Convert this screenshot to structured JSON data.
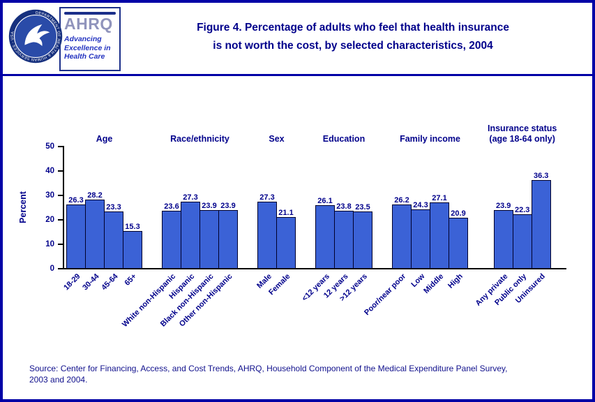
{
  "header": {
    "seal_text": "DEPARTMENT OF HEALTH & HUMAN SERVICES - USA",
    "ahrq_word": "AHRQ",
    "ahrq_tagline_line1": "Advancing",
    "ahrq_tagline_line2": "Excellence in",
    "ahrq_tagline_line3": "Health Care",
    "title_line1": "Figure 4. Percentage of adults who feel that health insurance",
    "title_line2": "is not worth the cost, by selected characteristics, 2004"
  },
  "chart_data": {
    "type": "bar",
    "title": "Percentage of adults who feel that health insurance is not worth the cost, by selected characteristics, 2004",
    "ylabel": "Percent",
    "ylim": [
      0,
      50
    ],
    "yticks": [
      0,
      10,
      20,
      30,
      40,
      50
    ],
    "bar_color": "#3b62d6",
    "bar_border_color": "#00002a",
    "grid": false,
    "groups": [
      {
        "label": "Age",
        "categories": [
          "18-29",
          "30-44",
          "45-64",
          "65+"
        ],
        "values": [
          26.3,
          28.2,
          23.3,
          15.3
        ]
      },
      {
        "label": "Race/ethnicity",
        "categories": [
          "White non-Hispanic",
          "Hispanic",
          "Black non-Hispanic",
          "Other non-Hispanic"
        ],
        "values": [
          23.6,
          27.3,
          23.9,
          23.9
        ]
      },
      {
        "label": "Sex",
        "categories": [
          "Male",
          "Female"
        ],
        "values": [
          27.3,
          21.1
        ]
      },
      {
        "label": "Education",
        "categories": [
          "<12 years",
          "12 years",
          ">12 years"
        ],
        "values": [
          26.1,
          23.8,
          23.5
        ]
      },
      {
        "label": "Family income",
        "categories": [
          "Poor/near poor",
          "Low",
          "Middle",
          "High"
        ],
        "values": [
          26.2,
          24.3,
          27.1,
          20.9
        ]
      },
      {
        "label": "Insurance status",
        "label2": "(age 18-64 only)",
        "categories": [
          "Any private",
          "Public only",
          "Uninsured"
        ],
        "values": [
          23.9,
          22.3,
          36.3
        ]
      }
    ]
  },
  "footer": {
    "source_line1": "Source: Center for Financing, Access, and Cost Trends, AHRQ, Household Component of the Medical Expenditure Panel Survey,",
    "source_line2": "2003 and 2004."
  },
  "colors": {
    "navy_text": "#00008B",
    "page_border": "#0000A6",
    "bar_fill": "#3b62d6"
  }
}
